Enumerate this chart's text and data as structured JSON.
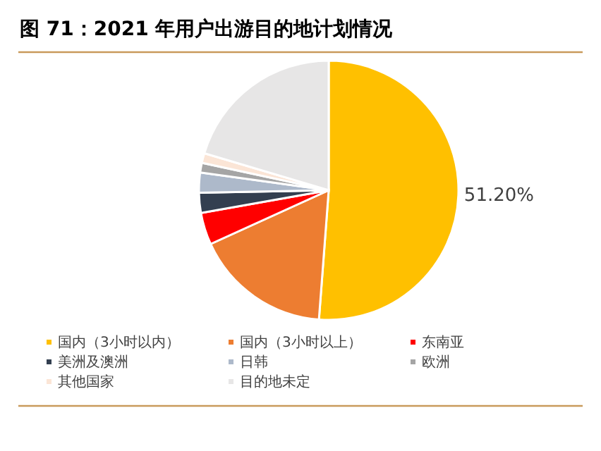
{
  "chart_data": {
    "type": "pie",
    "title": "图 71：2021 年用户出游目的地计划情况",
    "categories": [
      "国内（3小时以内）",
      "国内（3小时以上）",
      "东南亚",
      "美洲及澳洲",
      "日韩",
      "欧洲",
      "其他国家",
      "目的地未定"
    ],
    "values": [
      51.2,
      17,
      4,
      2.5,
      2.5,
      1.2,
      1.2,
      20.4
    ],
    "colors": [
      "#ffc000",
      "#ed7d31",
      "#ff0000",
      "#333f50",
      "#adb9ca",
      "#a5a5a5",
      "#fbe5d6",
      "#e7e6e6"
    ],
    "value_labels": [
      "51.20%",
      null,
      null,
      null,
      null,
      null,
      null,
      null
    ],
    "legend": "bottom"
  }
}
